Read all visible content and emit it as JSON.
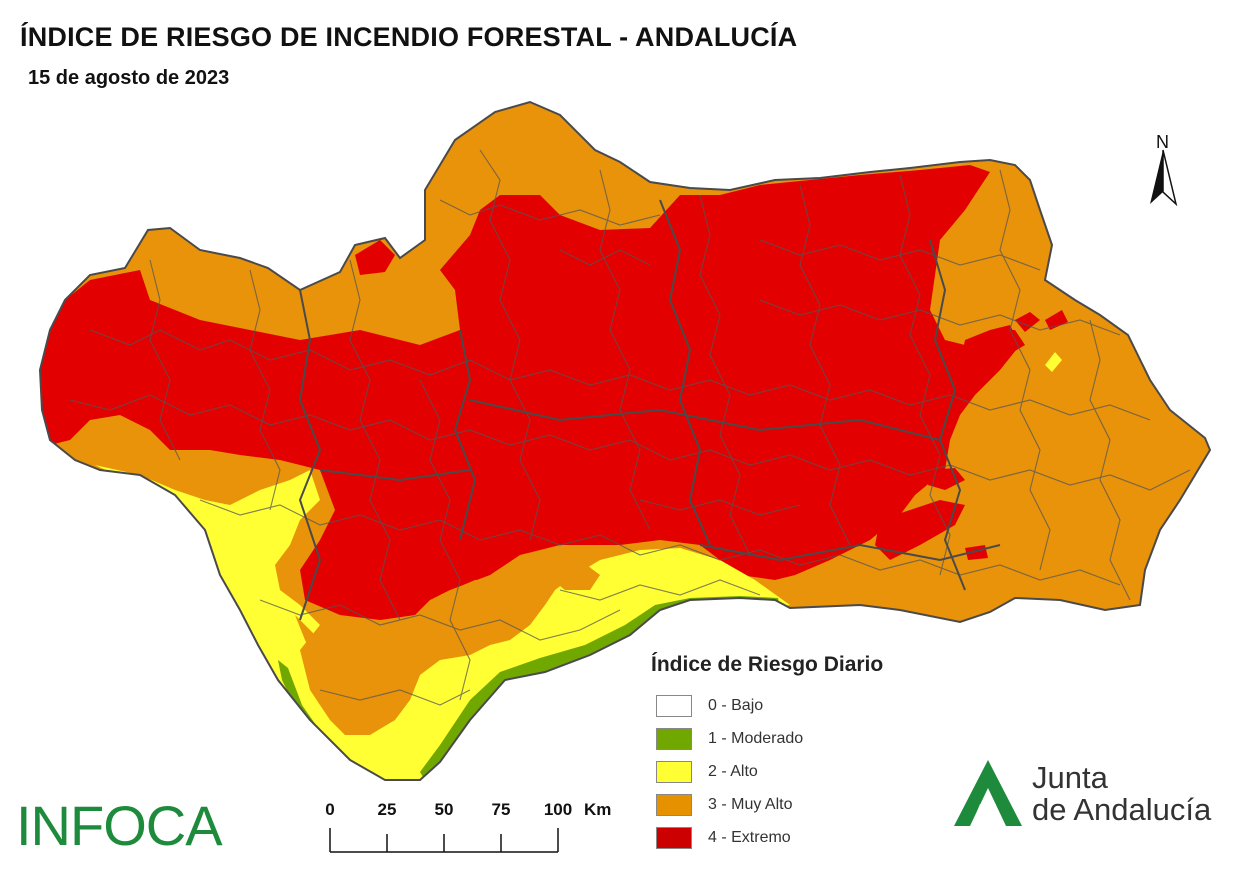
{
  "title": "ÍNDICE DE RIESGO DE INCENDIO FORESTAL - ANDALUCÍA",
  "date": "15 de agosto de 2023",
  "north_label": "N",
  "legend": {
    "title": "Índice de Riesgo Diario",
    "items": [
      {
        "label": "0 - Bajo",
        "color": "#ffffff"
      },
      {
        "label": "1 - Moderado",
        "color": "#70a800"
      },
      {
        "label": "2 - Alto",
        "color": "#ffff33"
      },
      {
        "label": "3 - Muy Alto",
        "color": "#e69100"
      },
      {
        "label": "4 - Extremo",
        "color": "#cc0000"
      }
    ]
  },
  "scale_bar": {
    "ticks": [
      "0",
      "25",
      "50",
      "75",
      "100"
    ],
    "unit": "Km"
  },
  "logos": {
    "infoca": "INFOCA",
    "junta_line1": "Junta",
    "junta_line2": "de Andalucía"
  },
  "colors": {
    "extreme": "#e30000",
    "very_high": "#e8930a",
    "high": "#ffff33",
    "moderate": "#70a800",
    "boundary": "#555555",
    "brand_green": "#1e8b3c"
  }
}
